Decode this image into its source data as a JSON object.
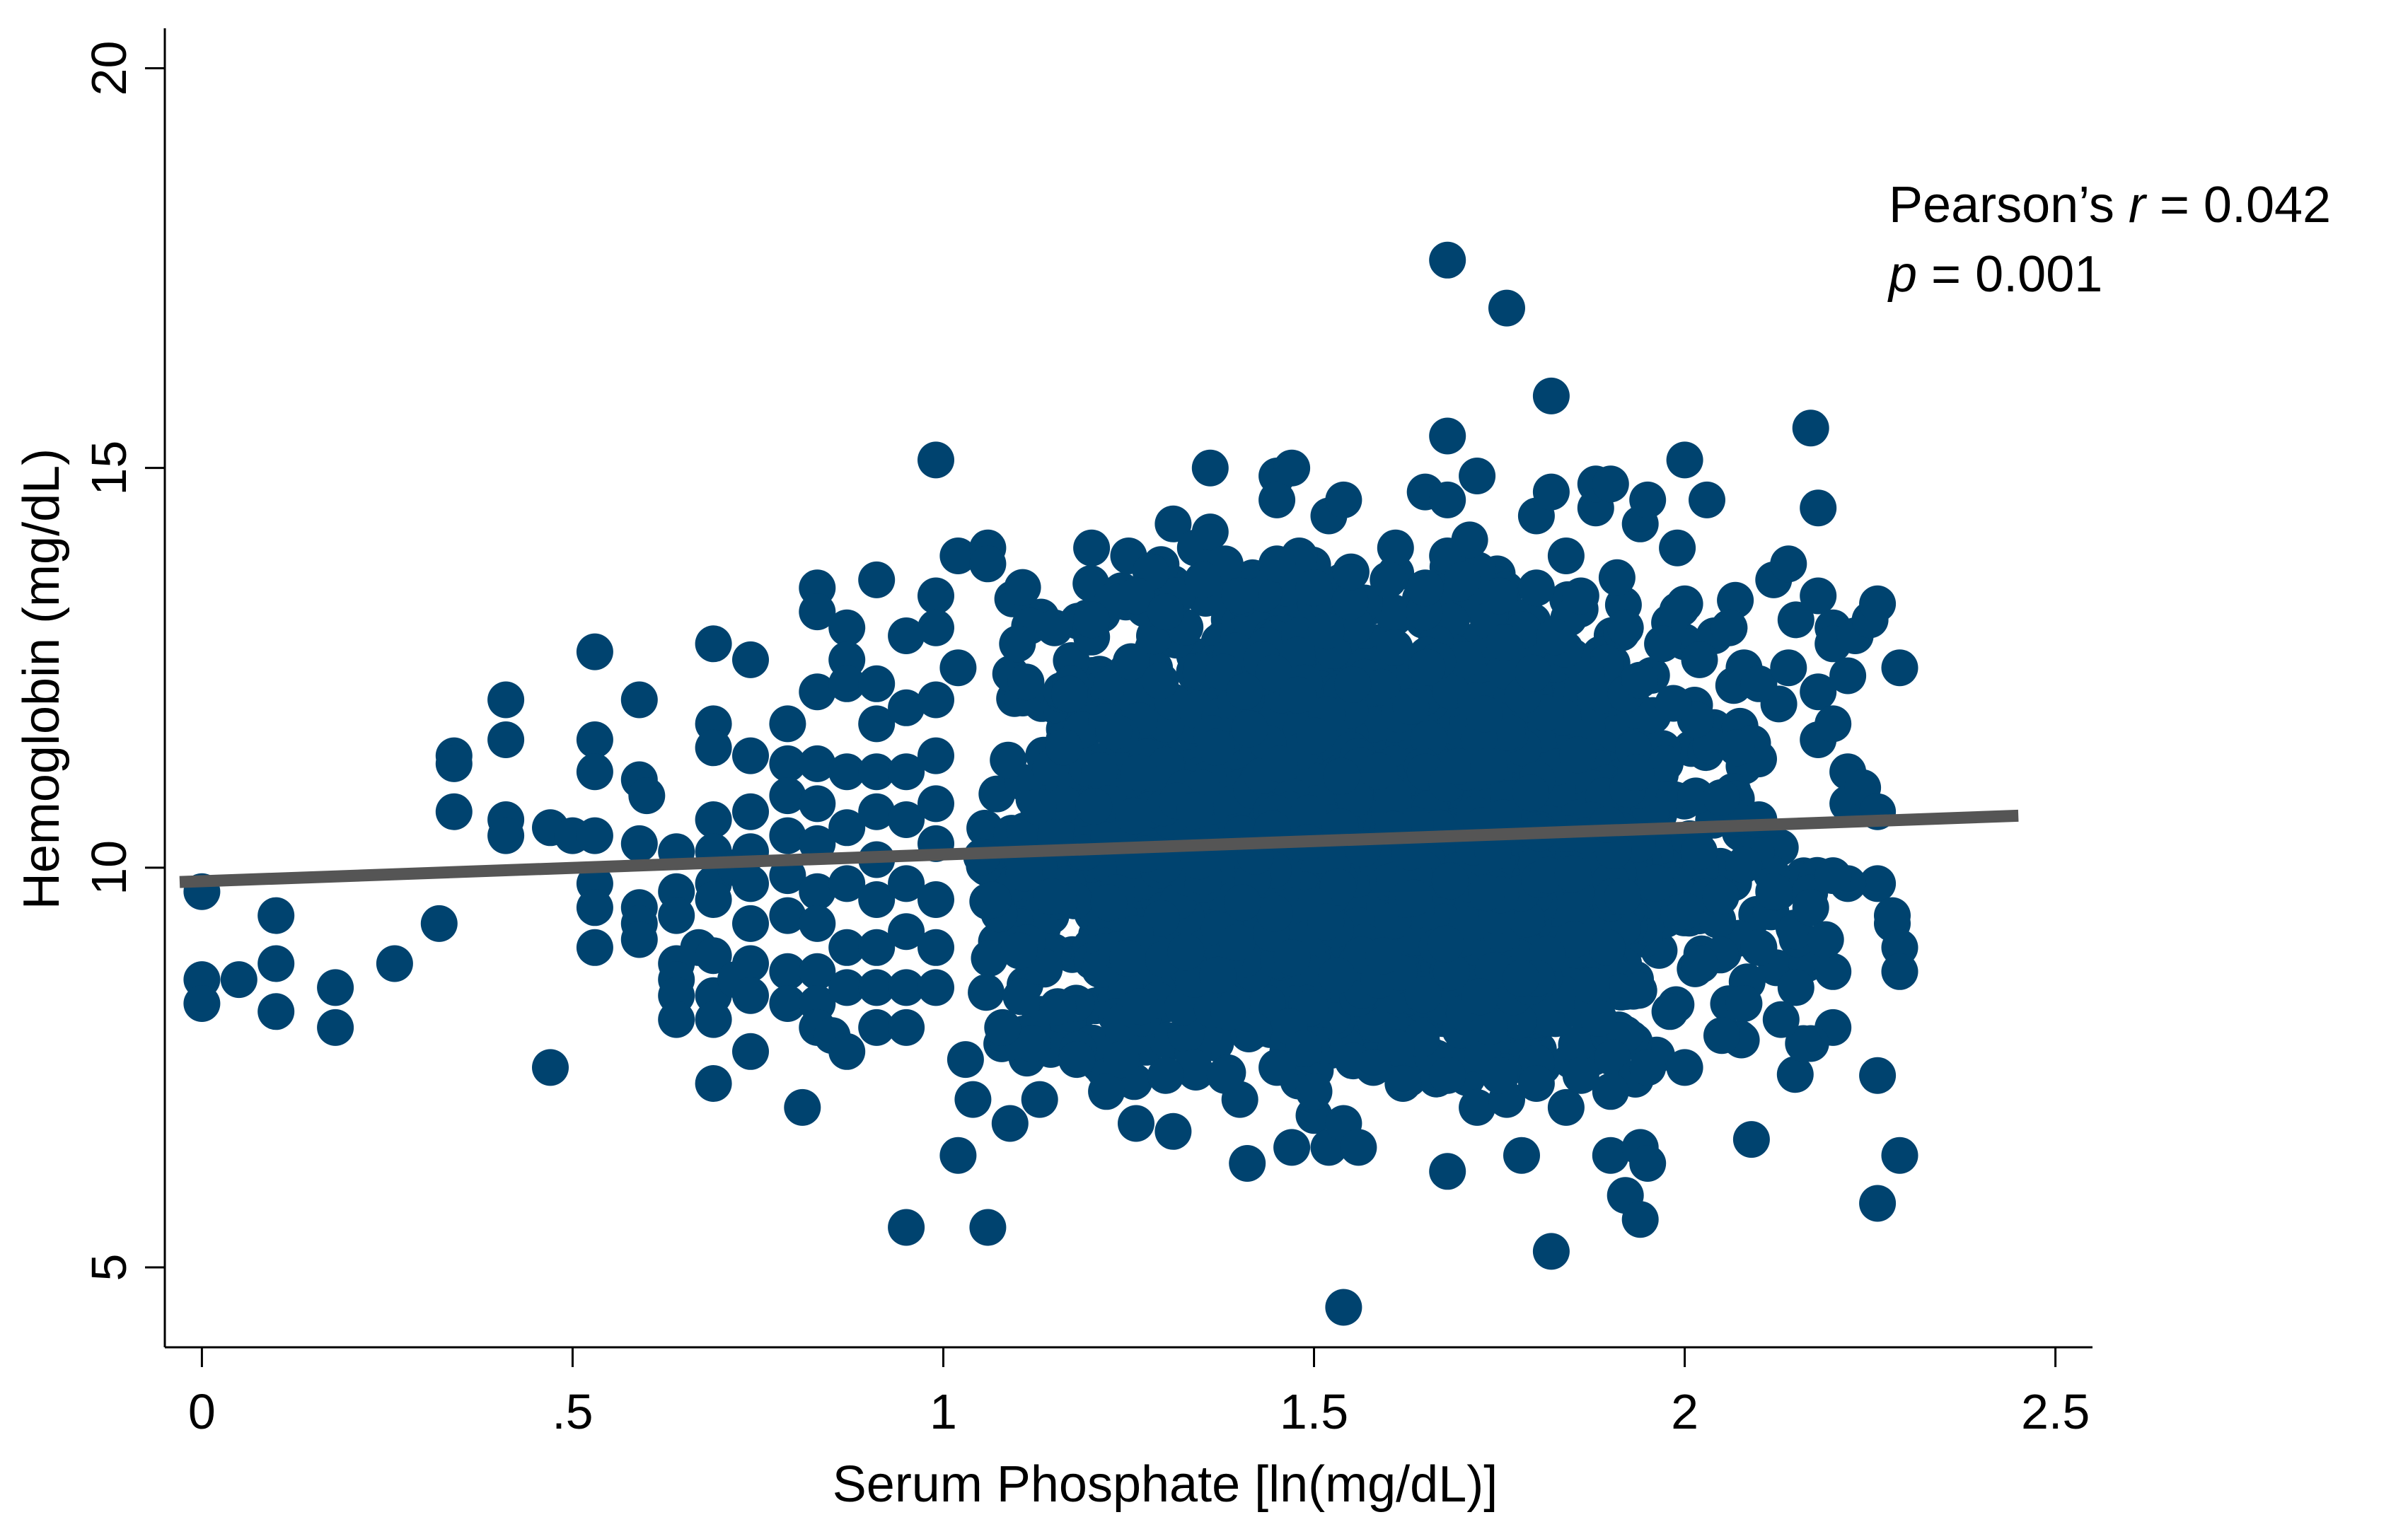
{
  "chart_data": {
    "type": "scatter",
    "title": "",
    "xlabel": "Serum Phosphate [ln(mg/dL)]",
    "ylabel": "Hemoglobin (mg/dL)",
    "xlim": [
      -0.05,
      2.55
    ],
    "ylim": [
      4.0,
      20.5
    ],
    "x_ticks": [
      0,
      0.5,
      1,
      1.5,
      2,
      2.5
    ],
    "x_tick_labels": [
      "0",
      ".5",
      "1",
      "1.5",
      "2",
      "2.5"
    ],
    "y_ticks": [
      5,
      10,
      15,
      20
    ],
    "y_tick_labels": [
      "5",
      "10",
      "15",
      "20"
    ],
    "grid": false,
    "legend": "none",
    "annotation": {
      "line1_prefix": "Pearson’s ",
      "line1_var": "r",
      "line1_suffix": " = 0.042",
      "line2_var": "p",
      "line2_suffix": " = 0.001"
    },
    "fit_line": {
      "x": [
        -0.03,
        2.45
      ],
      "y": [
        9.82,
        10.65
      ],
      "color": "#555555"
    },
    "point_color": "#00436f",
    "dense_cluster": {
      "x_range": [
        1.05,
        2.2
      ],
      "y_range": [
        7.3,
        13.8
      ],
      "center_x": 1.55,
      "center_y": 10.3
    },
    "points": [
      [
        0.0,
        9.7
      ],
      [
        0.0,
        8.6
      ],
      [
        0.0,
        8.3
      ],
      [
        0.05,
        8.6
      ],
      [
        0.1,
        9.4
      ],
      [
        0.1,
        8.8
      ],
      [
        0.1,
        8.2
      ],
      [
        0.18,
        8.5
      ],
      [
        0.18,
        8.0
      ],
      [
        0.26,
        8.8
      ],
      [
        0.32,
        9.3
      ],
      [
        0.34,
        11.4
      ],
      [
        0.34,
        11.3
      ],
      [
        0.34,
        10.7
      ],
      [
        0.41,
        12.1
      ],
      [
        0.41,
        11.6
      ],
      [
        0.41,
        10.6
      ],
      [
        0.41,
        10.4
      ],
      [
        0.47,
        10.5
      ],
      [
        0.47,
        7.5
      ],
      [
        0.5,
        10.4
      ],
      [
        0.53,
        12.7
      ],
      [
        0.53,
        11.6
      ],
      [
        0.53,
        11.2
      ],
      [
        0.53,
        10.4
      ],
      [
        0.53,
        9.8
      ],
      [
        0.53,
        9.5
      ],
      [
        0.53,
        9.0
      ],
      [
        0.59,
        12.1
      ],
      [
        0.59,
        11.1
      ],
      [
        0.6,
        10.9
      ],
      [
        0.59,
        10.3
      ],
      [
        0.59,
        9.5
      ],
      [
        0.59,
        9.3
      ],
      [
        0.59,
        9.1
      ],
      [
        0.64,
        10.2
      ],
      [
        0.64,
        9.7
      ],
      [
        0.64,
        9.4
      ],
      [
        0.64,
        8.8
      ],
      [
        0.64,
        8.6
      ],
      [
        0.64,
        8.4
      ],
      [
        0.64,
        8.1
      ],
      [
        0.67,
        9.0
      ],
      [
        0.69,
        12.8
      ],
      [
        0.69,
        11.8
      ],
      [
        0.69,
        11.5
      ],
      [
        0.69,
        10.6
      ],
      [
        0.69,
        10.2
      ],
      [
        0.69,
        9.8
      ],
      [
        0.69,
        9.6
      ],
      [
        0.69,
        8.9
      ],
      [
        0.69,
        8.4
      ],
      [
        0.69,
        8.1
      ],
      [
        0.69,
        7.3
      ],
      [
        0.72,
        10.0
      ],
      [
        0.72,
        8.6
      ],
      [
        0.74,
        12.6
      ],
      [
        0.74,
        11.4
      ],
      [
        0.74,
        10.7
      ],
      [
        0.74,
        10.2
      ],
      [
        0.74,
        9.8
      ],
      [
        0.74,
        9.3
      ],
      [
        0.74,
        8.8
      ],
      [
        0.74,
        8.4
      ],
      [
        0.74,
        7.7
      ],
      [
        0.79,
        11.8
      ],
      [
        0.79,
        11.3
      ],
      [
        0.79,
        10.9
      ],
      [
        0.79,
        10.4
      ],
      [
        0.79,
        9.9
      ],
      [
        0.79,
        9.4
      ],
      [
        0.79,
        8.7
      ],
      [
        0.79,
        8.3
      ],
      [
        0.81,
        7.0
      ],
      [
        0.83,
        13.5
      ],
      [
        0.83,
        13.2
      ],
      [
        0.83,
        12.2
      ],
      [
        0.83,
        11.3
      ],
      [
        0.83,
        10.8
      ],
      [
        0.83,
        10.3
      ],
      [
        0.83,
        9.7
      ],
      [
        0.83,
        9.3
      ],
      [
        0.83,
        8.7
      ],
      [
        0.83,
        8.3
      ],
      [
        0.83,
        8.0
      ],
      [
        0.85,
        7.9
      ],
      [
        0.87,
        13.0
      ],
      [
        0.87,
        12.6
      ],
      [
        0.87,
        12.3
      ],
      [
        0.87,
        11.2
      ],
      [
        0.87,
        10.5
      ],
      [
        0.87,
        9.8
      ],
      [
        0.87,
        9.0
      ],
      [
        0.87,
        8.5
      ],
      [
        0.87,
        7.7
      ],
      [
        0.91,
        13.6
      ],
      [
        0.91,
        12.3
      ],
      [
        0.91,
        11.8
      ],
      [
        0.91,
        11.2
      ],
      [
        0.91,
        10.7
      ],
      [
        0.91,
        10.1
      ],
      [
        0.91,
        9.6
      ],
      [
        0.91,
        9.0
      ],
      [
        0.91,
        8.5
      ],
      [
        0.91,
        8.0
      ],
      [
        0.95,
        12.9
      ],
      [
        0.95,
        12.0
      ],
      [
        0.95,
        11.2
      ],
      [
        0.95,
        10.6
      ],
      [
        0.95,
        9.8
      ],
      [
        0.95,
        9.2
      ],
      [
        0.95,
        8.5
      ],
      [
        0.95,
        8.0
      ],
      [
        0.95,
        5.5
      ],
      [
        0.99,
        15.1
      ],
      [
        0.99,
        13.4
      ],
      [
        0.99,
        13.0
      ],
      [
        0.99,
        12.1
      ],
      [
        0.99,
        11.4
      ],
      [
        0.99,
        10.8
      ],
      [
        0.99,
        10.3
      ],
      [
        0.99,
        9.6
      ],
      [
        0.99,
        9.0
      ],
      [
        0.99,
        8.5
      ],
      [
        1.02,
        13.9
      ],
      [
        1.02,
        12.5
      ],
      [
        1.02,
        6.4
      ],
      [
        1.03,
        7.6
      ],
      [
        1.04,
        7.1
      ],
      [
        1.06,
        14.0
      ],
      [
        1.06,
        13.8
      ],
      [
        1.06,
        5.5
      ],
      [
        1.09,
        6.8
      ],
      [
        1.13,
        7.1
      ],
      [
        1.2,
        14.0
      ],
      [
        1.22,
        7.2
      ],
      [
        1.25,
        13.9
      ],
      [
        1.26,
        6.8
      ],
      [
        1.28,
        13.7
      ],
      [
        1.31,
        14.3
      ],
      [
        1.31,
        6.7
      ],
      [
        1.34,
        14.0
      ],
      [
        1.36,
        15.0
      ],
      [
        1.36,
        14.2
      ],
      [
        1.38,
        13.8
      ],
      [
        1.4,
        7.1
      ],
      [
        1.41,
        6.3
      ],
      [
        1.45,
        14.9
      ],
      [
        1.45,
        14.6
      ],
      [
        1.47,
        15.0
      ],
      [
        1.47,
        6.5
      ],
      [
        1.48,
        13.9
      ],
      [
        1.5,
        6.9
      ],
      [
        1.52,
        14.4
      ],
      [
        1.52,
        6.5
      ],
      [
        1.54,
        14.6
      ],
      [
        1.54,
        6.8
      ],
      [
        1.54,
        4.5
      ],
      [
        1.56,
        6.5
      ],
      [
        1.61,
        14.0
      ],
      [
        1.65,
        14.7
      ],
      [
        1.68,
        17.6
      ],
      [
        1.68,
        15.4
      ],
      [
        1.68,
        14.6
      ],
      [
        1.68,
        13.9
      ],
      [
        1.68,
        6.2
      ],
      [
        1.71,
        14.1
      ],
      [
        1.72,
        14.9
      ],
      [
        1.72,
        7.0
      ],
      [
        1.76,
        17.0
      ],
      [
        1.76,
        7.1
      ],
      [
        1.78,
        6.4
      ],
      [
        1.8,
        14.4
      ],
      [
        1.82,
        15.9
      ],
      [
        1.82,
        14.7
      ],
      [
        1.82,
        5.2
      ],
      [
        1.84,
        13.9
      ],
      [
        1.84,
        7.0
      ],
      [
        1.88,
        14.5
      ],
      [
        1.88,
        14.8
      ],
      [
        1.9,
        14.8
      ],
      [
        1.9,
        6.4
      ],
      [
        1.92,
        5.9
      ],
      [
        1.94,
        14.3
      ],
      [
        1.94,
        6.5
      ],
      [
        1.94,
        5.6
      ],
      [
        1.95,
        6.3
      ],
      [
        1.95,
        14.6
      ],
      [
        1.99,
        14.0
      ],
      [
        2.0,
        15.1
      ],
      [
        2.0,
        13.3
      ],
      [
        2.03,
        14.6
      ],
      [
        2.04,
        12.9
      ],
      [
        2.06,
        13.0
      ],
      [
        2.08,
        12.5
      ],
      [
        2.09,
        6.6
      ],
      [
        2.1,
        12.3
      ],
      [
        2.12,
        13.6
      ],
      [
        2.14,
        13.8
      ],
      [
        2.14,
        12.5
      ],
      [
        2.15,
        13.1
      ],
      [
        2.17,
        15.5
      ],
      [
        2.18,
        14.5
      ],
      [
        2.18,
        13.4
      ],
      [
        2.18,
        12.2
      ],
      [
        2.18,
        11.6
      ],
      [
        2.2,
        13.0
      ],
      [
        2.2,
        12.8
      ],
      [
        2.2,
        11.8
      ],
      [
        2.22,
        12.4
      ],
      [
        2.22,
        11.2
      ],
      [
        2.22,
        10.8
      ],
      [
        2.23,
        12.9
      ],
      [
        2.24,
        11.0
      ],
      [
        2.25,
        13.1
      ],
      [
        2.26,
        13.3
      ],
      [
        2.26,
        10.7
      ],
      [
        2.26,
        9.8
      ],
      [
        2.26,
        7.4
      ],
      [
        2.26,
        5.8
      ],
      [
        2.28,
        9.3
      ],
      [
        2.28,
        9.4
      ],
      [
        2.29,
        12.5
      ],
      [
        2.29,
        9.0
      ],
      [
        2.29,
        8.7
      ],
      [
        2.29,
        6.4
      ],
      [
        2.22,
        9.8
      ],
      [
        2.2,
        9.9
      ],
      [
        2.2,
        8.0
      ],
      [
        2.17,
        7.8
      ],
      [
        2.16,
        7.8
      ],
      [
        2.2,
        8.7
      ],
      [
        2.17,
        9.5
      ],
      [
        2.19,
        9.1
      ],
      [
        2.15,
        8.5
      ],
      [
        2.13,
        8.1
      ],
      [
        2.08,
        8.3
      ],
      [
        2.05,
        7.9
      ],
      [
        2.02,
        8.8
      ],
      [
        2.0,
        7.5
      ],
      [
        1.98,
        8.2
      ],
      [
        1.95,
        7.5
      ],
      [
        1.9,
        7.2
      ],
      [
        1.86,
        7.4
      ],
      [
        1.8,
        7.3
      ],
      [
        1.75,
        7.4
      ],
      [
        1.68,
        7.4
      ],
      [
        1.62,
        7.3
      ],
      [
        1.58,
        7.5
      ],
      [
        1.5,
        7.2
      ],
      [
        1.45,
        7.5
      ],
      [
        1.38,
        7.4
      ],
      [
        1.3,
        7.4
      ],
      [
        1.24,
        7.6
      ],
      [
        1.18,
        7.6
      ],
      [
        1.12,
        7.8
      ],
      [
        1.08,
        8.0
      ],
      [
        1.1,
        12.8
      ],
      [
        1.15,
        13.0
      ],
      [
        1.2,
        13.1
      ],
      [
        1.26,
        13.4
      ],
      [
        1.3,
        13.2
      ],
      [
        1.35,
        13.6
      ],
      [
        1.4,
        13.4
      ],
      [
        1.45,
        13.8
      ],
      [
        1.5,
        13.5
      ],
      [
        1.55,
        13.7
      ],
      [
        1.6,
        13.6
      ],
      [
        1.65,
        13.5
      ],
      [
        1.7,
        13.6
      ],
      [
        1.75,
        13.4
      ],
      [
        1.8,
        13.5
      ],
      [
        1.86,
        13.4
      ],
      [
        1.92,
        13.0
      ],
      [
        1.97,
        12.8
      ],
      [
        2.02,
        12.6
      ],
      [
        2.07,
        11.5
      ],
      [
        2.1,
        10.6
      ],
      [
        2.12,
        9.7
      ],
      [
        2.1,
        9.0
      ]
    ]
  }
}
